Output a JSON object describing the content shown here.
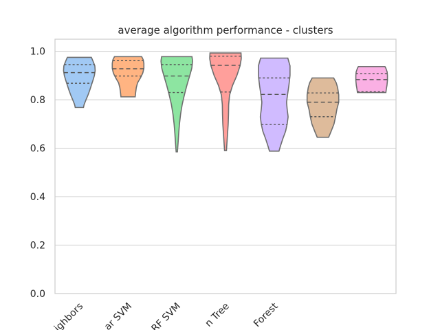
{
  "chart_data": {
    "type": "violin",
    "title": "average algorithm performance - clusters",
    "xlabel": "",
    "ylabel": "",
    "ylim": [
      0,
      1.05
    ],
    "yticks": [
      0.0,
      0.2,
      0.4,
      0.6,
      0.8,
      1.0
    ],
    "ytick_labels": [
      "0.0",
      "0.2",
      "0.4",
      "0.6",
      "0.8",
      "1.0"
    ],
    "categories": [
      "ighbors",
      "ar SVM",
      "RF SVM",
      "n Tree",
      "Forest",
      "",
      ""
    ],
    "grid": true,
    "series": [
      {
        "color": "#a1c9f4",
        "min": 0.768,
        "q1": 0.868,
        "median": 0.912,
        "q3": 0.945,
        "max": 0.975,
        "profile": [
          [
            0.768,
            0.26
          ],
          [
            0.78,
            0.3
          ],
          [
            0.8,
            0.42
          ],
          [
            0.82,
            0.55
          ],
          [
            0.84,
            0.66
          ],
          [
            0.86,
            0.76
          ],
          [
            0.88,
            0.86
          ],
          [
            0.9,
            0.95
          ],
          [
            0.92,
            1.0
          ],
          [
            0.94,
            0.98
          ],
          [
            0.96,
            0.86
          ],
          [
            0.975,
            0.76
          ]
        ]
      },
      {
        "color": "#ffb482",
        "min": 0.812,
        "q1": 0.898,
        "median": 0.928,
        "q3": 0.962,
        "max": 0.978,
        "profile": [
          [
            0.812,
            0.45
          ],
          [
            0.83,
            0.48
          ],
          [
            0.85,
            0.52
          ],
          [
            0.87,
            0.6
          ],
          [
            0.89,
            0.78
          ],
          [
            0.91,
            0.93
          ],
          [
            0.93,
            1.0
          ],
          [
            0.95,
            1.0
          ],
          [
            0.965,
            0.96
          ],
          [
            0.978,
            0.86
          ]
        ]
      },
      {
        "color": "#8de5a1",
        "min": 0.585,
        "q1": 0.83,
        "median": 0.898,
        "q3": 0.945,
        "max": 0.978,
        "profile": [
          [
            0.585,
            0.04
          ],
          [
            0.62,
            0.08
          ],
          [
            0.66,
            0.12
          ],
          [
            0.7,
            0.17
          ],
          [
            0.74,
            0.24
          ],
          [
            0.78,
            0.34
          ],
          [
            0.82,
            0.48
          ],
          [
            0.86,
            0.64
          ],
          [
            0.9,
            0.82
          ],
          [
            0.93,
            0.95
          ],
          [
            0.96,
            1.0
          ],
          [
            0.978,
            0.96
          ]
        ]
      },
      {
        "color": "#ff9f9b",
        "min": 0.59,
        "q1": 0.832,
        "median": 0.942,
        "q3": 0.98,
        "max": 0.993,
        "profile": [
          [
            0.59,
            0.06
          ],
          [
            0.62,
            0.09
          ],
          [
            0.66,
            0.13
          ],
          [
            0.7,
            0.17
          ],
          [
            0.74,
            0.19
          ],
          [
            0.78,
            0.2
          ],
          [
            0.82,
            0.26
          ],
          [
            0.86,
            0.45
          ],
          [
            0.9,
            0.72
          ],
          [
            0.94,
            0.92
          ],
          [
            0.97,
            1.0
          ],
          [
            0.993,
            0.98
          ]
        ]
      },
      {
        "color": "#d0bbff",
        "min": 0.588,
        "q1": 0.698,
        "median": 0.822,
        "q3": 0.89,
        "max": 0.972,
        "profile": [
          [
            0.588,
            0.3
          ],
          [
            0.61,
            0.4
          ],
          [
            0.64,
            0.55
          ],
          [
            0.67,
            0.72
          ],
          [
            0.7,
            0.82
          ],
          [
            0.73,
            0.88
          ],
          [
            0.76,
            0.82
          ],
          [
            0.79,
            0.78
          ],
          [
            0.82,
            0.84
          ],
          [
            0.86,
            0.93
          ],
          [
            0.9,
            1.0
          ],
          [
            0.94,
            1.0
          ],
          [
            0.972,
            0.86
          ]
        ]
      },
      {
        "color": "#debb9b",
        "min": 0.645,
        "q1": 0.73,
        "median": 0.79,
        "q3": 0.828,
        "max": 0.89,
        "profile": [
          [
            0.645,
            0.36
          ],
          [
            0.67,
            0.52
          ],
          [
            0.7,
            0.7
          ],
          [
            0.73,
            0.8
          ],
          [
            0.76,
            0.88
          ],
          [
            0.79,
            1.0
          ],
          [
            0.82,
            1.0
          ],
          [
            0.85,
            0.93
          ],
          [
            0.87,
            0.84
          ],
          [
            0.89,
            0.68
          ]
        ]
      },
      {
        "color": "#fab0e4",
        "min": 0.83,
        "q1": 0.833,
        "median": 0.883,
        "q3": 0.908,
        "max": 0.937,
        "profile": [
          [
            0.83,
            0.9
          ],
          [
            0.845,
            0.93
          ],
          [
            0.86,
            0.97
          ],
          [
            0.88,
            1.0
          ],
          [
            0.9,
            1.0
          ],
          [
            0.915,
            0.98
          ],
          [
            0.93,
            0.9
          ],
          [
            0.937,
            0.84
          ]
        ]
      }
    ]
  }
}
